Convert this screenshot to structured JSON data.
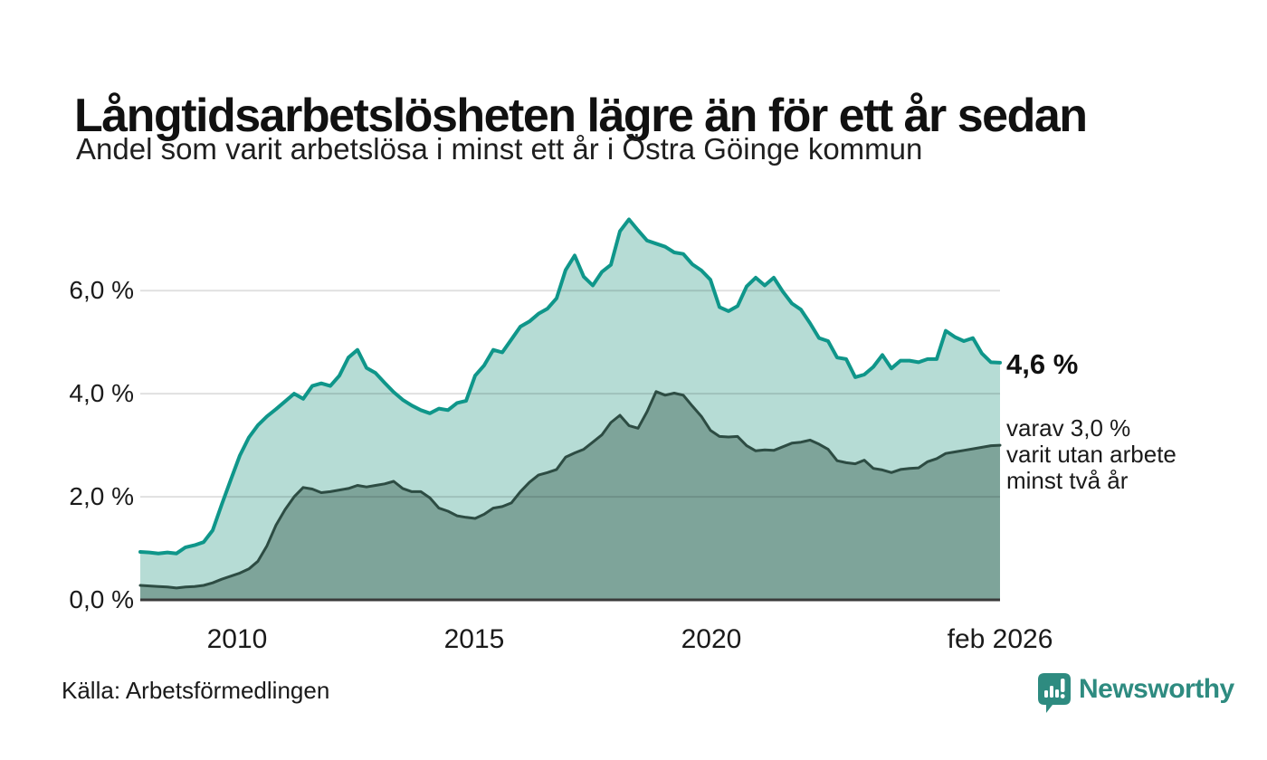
{
  "header": {
    "title": "Långtidsarbetslösheten lägre än för ett år sedan",
    "subtitle": "Andel som varit arbetslösa i minst ett år i Östra Göinge kommun"
  },
  "chart_data": {
    "type": "area",
    "title": "Långtidsarbetslösheten lägre än för ett år sedan",
    "subtitle": "Andel som varit arbetslösa i minst ett år i Östra Göinge kommun",
    "unit": "%",
    "x_start_year": 2007.96,
    "x_end_year": 2026.083,
    "ylim": [
      0,
      7.6
    ],
    "grid": true,
    "legend_position": "none",
    "x_ticks": [
      {
        "label": "2010",
        "year": 2010
      },
      {
        "label": "2015",
        "year": 2015
      },
      {
        "label": "2020",
        "year": 2020
      },
      {
        "label": "feb 2026",
        "year": 2026.083
      }
    ],
    "y_ticks": [
      {
        "label": "6,0 %",
        "value": 6
      },
      {
        "label": "4,0 %",
        "value": 4
      },
      {
        "label": "2,0 %",
        "value": 2
      },
      {
        "label": "0,0 %",
        "value": 0
      }
    ],
    "series": [
      {
        "name": "Andel som varit arbetslösa i minst ett år",
        "line_color": "#0f968a",
        "fill_color": "#b6dcd5",
        "line_width": 4,
        "latest_value": 4.6,
        "values": [
          0.93,
          0.92,
          0.9,
          0.92,
          0.9,
          1.02,
          1.06,
          1.12,
          1.35,
          1.85,
          2.33,
          2.8,
          3.15,
          3.39,
          3.56,
          3.7,
          3.85,
          4.0,
          3.9,
          4.15,
          4.2,
          4.15,
          4.35,
          4.7,
          4.85,
          4.5,
          4.4,
          4.21,
          4.03,
          3.88,
          3.77,
          3.68,
          3.62,
          3.71,
          3.68,
          3.82,
          3.86,
          4.35,
          4.55,
          4.85,
          4.8,
          5.05,
          5.3,
          5.4,
          5.55,
          5.65,
          5.85,
          6.4,
          6.68,
          6.27,
          6.1,
          6.36,
          6.5,
          7.15,
          7.38,
          7.17,
          6.97,
          6.91,
          6.85,
          6.74,
          6.71,
          6.51,
          6.39,
          6.21,
          5.68,
          5.6,
          5.7,
          6.08,
          6.25,
          6.1,
          6.25,
          5.98,
          5.75,
          5.63,
          5.37,
          5.08,
          5.02,
          4.7,
          4.67,
          4.32,
          4.37,
          4.52,
          4.75,
          4.49,
          4.64,
          4.64,
          4.61,
          4.67,
          4.67,
          5.22,
          5.1,
          5.02,
          5.08,
          4.78,
          4.61,
          4.6
        ]
      },
      {
        "name": "varav utan arbete minst två år",
        "line_color": "#2d4c43",
        "fill_color": "#7ea49a",
        "line_width": 3,
        "latest_value": 3.0,
        "values": [
          0.28,
          0.27,
          0.26,
          0.25,
          0.23,
          0.25,
          0.26,
          0.28,
          0.33,
          0.4,
          0.46,
          0.52,
          0.6,
          0.75,
          1.05,
          1.45,
          1.75,
          2.0,
          2.18,
          2.15,
          2.08,
          2.1,
          2.13,
          2.16,
          2.22,
          2.19,
          2.22,
          2.25,
          2.3,
          2.16,
          2.1,
          2.1,
          1.98,
          1.78,
          1.72,
          1.63,
          1.6,
          1.58,
          1.66,
          1.78,
          1.81,
          1.88,
          2.1,
          2.28,
          2.42,
          2.47,
          2.53,
          2.77,
          2.85,
          2.92,
          3.06,
          3.2,
          3.44,
          3.58,
          3.38,
          3.33,
          3.65,
          4.04,
          3.97,
          4.01,
          3.97,
          3.76,
          3.56,
          3.29,
          3.17,
          3.16,
          3.17,
          2.99,
          2.89,
          2.91,
          2.9,
          2.97,
          3.04,
          3.06,
          3.1,
          3.02,
          2.92,
          2.7,
          2.66,
          2.64,
          2.71,
          2.55,
          2.52,
          2.47,
          2.53,
          2.55,
          2.56,
          2.68,
          2.74,
          2.84,
          2.87,
          2.9,
          2.93,
          2.96,
          2.99,
          3.0
        ]
      }
    ]
  },
  "annotation": {
    "value_label": "4,6 %",
    "detail_lines": [
      "varav 3,0 %",
      "varit utan arbete",
      "minst två år"
    ]
  },
  "source_label": "Källa: Arbetsförmedlingen",
  "logo": {
    "text": "Newsworthy",
    "color": "#2e8b80"
  },
  "colors": {
    "background": "#ffffff",
    "text": "#1a1a1a",
    "gridline": "rgba(0,0,0,0.12)",
    "axis_line": "#3a3a3a"
  }
}
